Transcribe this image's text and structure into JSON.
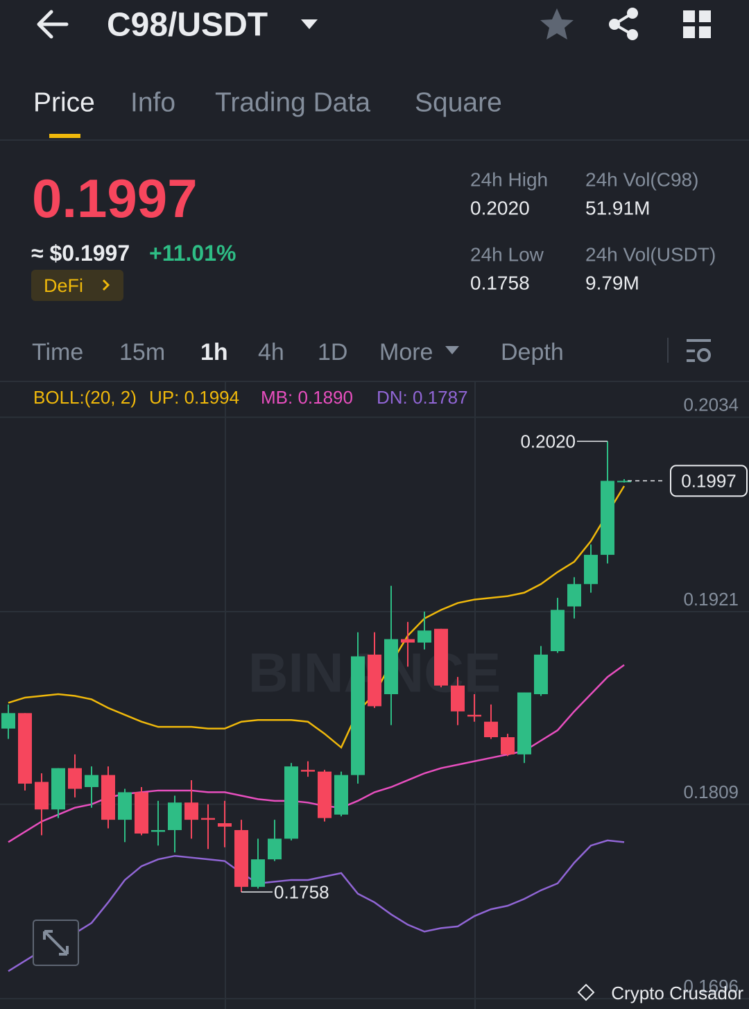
{
  "header": {
    "pair": "C98/USDT"
  },
  "tabs": [
    "Price",
    "Info",
    "Trading Data",
    "Square"
  ],
  "price": {
    "last": "0.1997",
    "fiat": "≈ $0.1997",
    "change": "+11.01%",
    "tag": "DeFi"
  },
  "stats": [
    {
      "label": "24h High",
      "value": "0.2020"
    },
    {
      "label": "24h Vol(C98)",
      "value": "51.91M"
    },
    {
      "label": "24h Low",
      "value": "0.1758"
    },
    {
      "label": "24h Vol(USDT)",
      "value": "9.79M"
    }
  ],
  "intervals": [
    "Time",
    "15m",
    "1h",
    "4h",
    "1D",
    "More",
    "Depth"
  ],
  "watermark": "Crypto Crusador",
  "chart_data": {
    "type": "candlestick",
    "watermark": "BINANCE",
    "legend": [
      "BOLL:(20, 2)",
      "UP: 0.1994",
      "MB: 0.1890",
      "DN: 0.1787"
    ],
    "ylim": [
      0.169,
      0.2054
    ],
    "yticks": [
      0.2034,
      0.1921,
      0.1809,
      0.1696
    ],
    "up_color": "#2ebd85",
    "down_color": "#f6465d",
    "open": [
      0.1853,
      0.1862,
      0.1822,
      0.1806,
      0.183,
      0.1819,
      0.1826,
      0.18,
      0.1816,
      0.1793,
      0.1794,
      0.181,
      0.1801,
      0.1798,
      0.1794,
      0.1761,
      0.1777,
      0.1789,
      0.1829,
      0.1828,
      0.1803,
      0.1826,
      0.1896,
      0.1873,
      0.1905,
      0.1903,
      0.1911,
      0.1878,
      0.1861,
      0.1857,
      0.1848,
      0.1838,
      0.1873,
      0.1898,
      0.1924,
      0.1937,
      0.1954,
      0.1997
    ],
    "high": [
      0.1867,
      0.1862,
      0.1827,
      0.183,
      0.1838,
      0.1831,
      0.1831,
      0.1818,
      0.1819,
      0.1811,
      0.1814,
      0.1823,
      0.1809,
      0.1811,
      0.18,
      0.1789,
      0.18,
      0.1833,
      0.1834,
      0.1829,
      0.1828,
      0.1909,
      0.1909,
      0.1936,
      0.1915,
      0.1921,
      0.1911,
      0.1883,
      0.1873,
      0.1867,
      0.185,
      0.1874,
      0.1901,
      0.1929,
      0.1941,
      0.196,
      0.202,
      0.1998
    ],
    "low": [
      0.1847,
      0.1817,
      0.1791,
      0.1801,
      0.1813,
      0.1807,
      0.1795,
      0.1787,
      0.1791,
      0.1785,
      0.1781,
      0.1789,
      0.1783,
      0.1784,
      0.1758,
      0.176,
      0.1776,
      0.1788,
      0.1825,
      0.1799,
      0.1802,
      0.1821,
      0.1865,
      0.1855,
      0.1889,
      0.1899,
      0.1877,
      0.1855,
      0.1857,
      0.1847,
      0.1837,
      0.1833,
      0.1872,
      0.1897,
      0.1917,
      0.1932,
      0.1949,
      0.1996
    ],
    "close": [
      0.1862,
      0.1821,
      0.1806,
      0.183,
      0.1818,
      0.1826,
      0.18,
      0.1816,
      0.1792,
      0.1794,
      0.181,
      0.18,
      0.18,
      0.1796,
      0.1761,
      0.1777,
      0.1789,
      0.1831,
      0.1828,
      0.1801,
      0.1826,
      0.1895,
      0.1866,
      0.1905,
      0.1903,
      0.191,
      0.1878,
      0.1863,
      0.186,
      0.1848,
      0.1838,
      0.1874,
      0.1896,
      0.1922,
      0.1937,
      0.1954,
      0.1997,
      0.1997
    ],
    "series": [
      {
        "color": "#f0b90b",
        "values": [
          0.1868,
          0.1871,
          0.1872,
          0.1873,
          0.1872,
          0.187,
          0.1865,
          0.1861,
          0.1857,
          0.1854,
          0.1854,
          0.1854,
          0.1853,
          0.1853,
          0.1857,
          0.1858,
          0.1858,
          0.1858,
          0.1857,
          0.185,
          0.1842,
          0.1863,
          0.1873,
          0.1891,
          0.1907,
          0.1917,
          0.1922,
          0.1926,
          0.1928,
          0.1929,
          0.193,
          0.1932,
          0.1937,
          0.1944,
          0.195,
          0.1962,
          0.1978,
          0.1994
        ]
      },
      {
        "color": "#e84fbf",
        "values": [
          0.1787,
          0.1793,
          0.1799,
          0.1803,
          0.1807,
          0.1809,
          0.1813,
          0.1815,
          0.1816,
          0.1817,
          0.1817,
          0.1817,
          0.1816,
          0.1816,
          0.1814,
          0.1812,
          0.1811,
          0.1811,
          0.181,
          0.1808,
          0.1807,
          0.1811,
          0.1816,
          0.1819,
          0.1823,
          0.1827,
          0.183,
          0.1832,
          0.1834,
          0.1836,
          0.1838,
          0.184,
          0.1846,
          0.1852,
          0.1863,
          0.1873,
          0.1883,
          0.189
        ]
      },
      {
        "color": "#9166d6",
        "values": [
          0.1712,
          0.1718,
          0.1724,
          0.173,
          0.1734,
          0.174,
          0.1752,
          0.1765,
          0.1773,
          0.1777,
          0.1779,
          0.1778,
          0.1777,
          0.1776,
          0.1769,
          0.1763,
          0.1764,
          0.1765,
          0.1765,
          0.1767,
          0.1769,
          0.1757,
          0.1752,
          0.1745,
          0.1739,
          0.1735,
          0.1737,
          0.1738,
          0.1744,
          0.1748,
          0.175,
          0.1754,
          0.1759,
          0.1763,
          0.1775,
          0.1785,
          0.1788,
          0.1787
        ]
      }
    ],
    "high_label": {
      "value": 0.202,
      "label": "0.2020"
    },
    "low_label": 0.1758,
    "last_price": 0.1997
  }
}
